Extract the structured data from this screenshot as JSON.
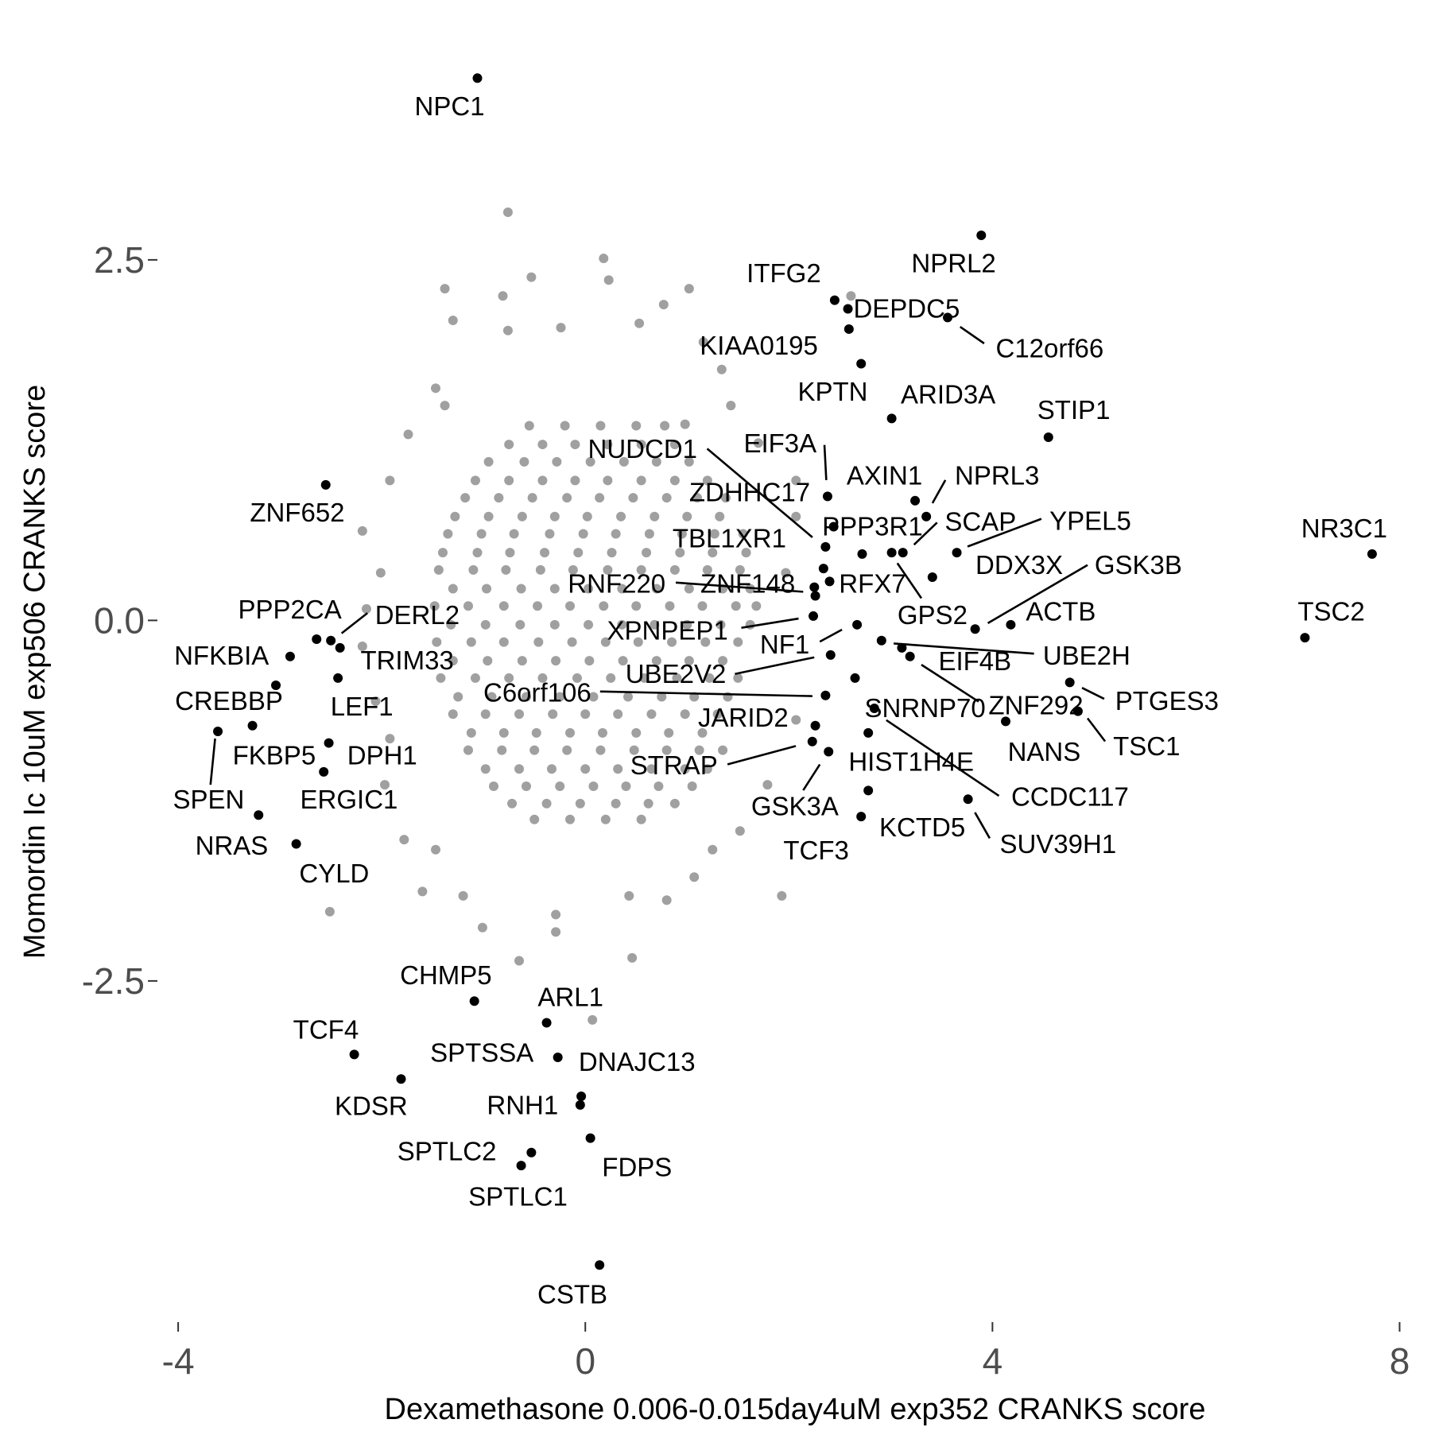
{
  "chart_data": {
    "type": "scatter",
    "x_label": "Dexamethasone 0.006-0.015day4uM exp352 CRANKS score",
    "y_label": "Momordin Ic 10uM exp506 CRANKS score",
    "xlim": [
      -4.15,
      8.2
    ],
    "ylim": [
      -4.8,
      4.05
    ],
    "xticks": [
      -4,
      0,
      4,
      8
    ],
    "yticks": [
      -2.5,
      {
        "value": 0,
        "label": "0.0"
      },
      2.5
    ],
    "background_points": {
      "color": "#a0a0a0",
      "x": [
        -0.55,
        -0.2,
        0.15,
        0.5,
        0.78,
        -0.95,
        -0.6,
        -0.28,
        0.05,
        0.38,
        0.7,
        1.02,
        -1.18,
        -0.85,
        -0.52,
        -0.18,
        0.14,
        0.47,
        0.8,
        1.1,
        1.38,
        -1.35,
        -1.02,
        -0.7,
        -0.35,
        -0.02,
        0.3,
        0.63,
        0.95,
        1.27,
        1.55,
        -1.44,
        -1.1,
        -0.78,
        -0.44,
        -0.12,
        0.22,
        0.55,
        0.88,
        1.2,
        1.52,
        -1.48,
        -1.15,
        -0.8,
        -0.47,
        -0.15,
        0.18,
        0.5,
        0.83,
        1.15,
        1.48,
        1.68,
        -1.46,
        -1.12,
        -0.8,
        -0.46,
        -0.13,
        0.2,
        0.52,
        0.85,
        1.18,
        1.5,
        -1.42,
        -1.08,
        -0.75,
        -0.42,
        -0.08,
        0.25,
        0.58,
        0.9,
        1.22,
        1.5,
        -1.3,
        -0.98,
        -0.65,
        -0.32,
        0.0,
        0.32,
        0.65,
        0.98,
        1.3,
        -1.15,
        -0.82,
        -0.5,
        -0.18,
        0.15,
        0.48,
        0.8,
        1.12,
        1.35,
        -0.9,
        -0.58,
        -0.25,
        0.08,
        0.4,
        0.72,
        1.05,
        -0.5,
        -0.15,
        0.2,
        0.55,
        -0.75,
        -0.42,
        -0.1,
        0.22,
        0.55,
        0.88,
        -1.08,
        -0.75,
        -0.42,
        -0.1,
        0.22,
        0.55,
        0.88,
        1.2,
        -1.28,
        -0.95,
        -0.62,
        -0.3,
        0.02,
        0.35,
        0.68,
        1.0,
        1.32,
        -1.4,
        -1.06,
        -0.74,
        -0.4,
        -0.07,
        0.26,
        0.6,
        0.93,
        1.25,
        1.58,
        -1.3,
        -0.97,
        -0.63,
        -0.3,
        0.03,
        0.36,
        0.7,
        1.02,
        1.35,
        1.62,
        -1.32,
        -0.98,
        -0.64,
        -0.3,
        0.03,
        0.36,
        0.68,
        1.0,
        1.33,
        1.62,
        -1.3,
        -0.96,
        -0.62,
        -0.29,
        0.04,
        0.37,
        0.7,
        1.02,
        1.35,
        -1.25,
        -0.92,
        -0.58,
        -0.25,
        0.08,
        0.42,
        0.75,
        1.07,
        1.4,
        -1.12,
        -0.8,
        -0.48,
        -0.15,
        0.17,
        0.5,
        0.82,
        1.15,
        -0.98,
        -0.65,
        -0.33,
        0.0,
        0.32,
        0.65,
        0.98,
        1.2,
        -0.72,
        -0.38,
        -0.05,
        0.3,
        0.62,
        0.88,
        -0.76,
        0.18,
        -0.53,
        0.23,
        -1.38,
        -0.81,
        1.02,
        0.77,
        -1.3,
        -0.76,
        -0.24,
        0.53,
        1.16,
        2.61,
        1.34,
        -1.47,
        -1.74,
        -1.92,
        -2.19,
        -2.01,
        -2.15,
        -2.19,
        -2.06,
        -1.92,
        -1.97,
        -1.78,
        -1.6,
        -2.51,
        -1.01,
        -0.65,
        0.07,
        0.46,
        0.8,
        1.93,
        1.52,
        1.79,
        2.07,
        2.07,
        1.7,
        2.07,
        1.97,
        -0.29,
        -1.38,
        1.43,
        0.98,
        1.25,
        -1.2,
        -1.47,
        -0.29,
        0.43,
        1.07
      ],
      "y": [
        1.35,
        1.35,
        1.35,
        1.35,
        1.35,
        1.1,
        1.1,
        1.1,
        1.1,
        1.1,
        1.1,
        1.1,
        0.85,
        0.85,
        0.85,
        0.85,
        0.85,
        0.85,
        0.85,
        0.85,
        0.85,
        0.6,
        0.6,
        0.6,
        0.6,
        0.6,
        0.6,
        0.6,
        0.6,
        0.6,
        0.6,
        0.35,
        0.35,
        0.35,
        0.35,
        0.35,
        0.35,
        0.35,
        0.35,
        0.35,
        0.35,
        0.1,
        0.1,
        0.1,
        0.1,
        0.1,
        0.1,
        0.1,
        0.1,
        0.1,
        0.1,
        0.1,
        -0.15,
        -0.15,
        -0.15,
        -0.15,
        -0.15,
        -0.15,
        -0.15,
        -0.15,
        -0.15,
        -0.15,
        -0.4,
        -0.4,
        -0.4,
        -0.4,
        -0.4,
        -0.4,
        -0.4,
        -0.4,
        -0.4,
        -0.4,
        -0.65,
        -0.65,
        -0.65,
        -0.65,
        -0.65,
        -0.65,
        -0.65,
        -0.65,
        -0.65,
        -0.9,
        -0.9,
        -0.9,
        -0.9,
        -0.9,
        -0.9,
        -0.9,
        -0.9,
        -0.9,
        -1.15,
        -1.15,
        -1.15,
        -1.15,
        -1.15,
        -1.15,
        -1.15,
        -1.38,
        -1.38,
        -1.38,
        -1.38,
        1.22,
        1.22,
        1.22,
        1.22,
        1.22,
        1.22,
        0.97,
        0.97,
        0.97,
        0.97,
        0.97,
        0.97,
        0.97,
        0.97,
        0.72,
        0.72,
        0.72,
        0.72,
        0.72,
        0.72,
        0.72,
        0.72,
        0.72,
        0.47,
        0.47,
        0.47,
        0.47,
        0.47,
        0.47,
        0.47,
        0.47,
        0.47,
        0.47,
        0.22,
        0.22,
        0.22,
        0.22,
        0.22,
        0.22,
        0.22,
        0.22,
        0.22,
        0.22,
        -0.03,
        -0.03,
        -0.03,
        -0.03,
        -0.03,
        -0.03,
        -0.03,
        -0.03,
        -0.03,
        -0.03,
        -0.28,
        -0.28,
        -0.28,
        -0.28,
        -0.28,
        -0.28,
        -0.28,
        -0.28,
        -0.28,
        -0.53,
        -0.53,
        -0.53,
        -0.53,
        -0.53,
        -0.53,
        -0.53,
        -0.53,
        -0.53,
        -0.78,
        -0.78,
        -0.78,
        -0.78,
        -0.78,
        -0.78,
        -0.78,
        -0.78,
        -1.03,
        -1.03,
        -1.03,
        -1.03,
        -1.03,
        -1.03,
        -1.03,
        -1.03,
        -1.27,
        -1.27,
        -1.27,
        -1.27,
        -1.27,
        -1.27,
        2.83,
        2.51,
        2.38,
        2.36,
        2.3,
        2.25,
        2.3,
        2.19,
        2.08,
        2.01,
        2.03,
        2.06,
        1.93,
        2.25,
        1.74,
        1.61,
        1.29,
        0.97,
        0.62,
        0.33,
        0.08,
        -0.18,
        -0.56,
        -0.82,
        -1.14,
        -1.52,
        -1.88,
        -2.02,
        -2.13,
        -2.36,
        -2.77,
        -2.34,
        -1.94,
        -1.91,
        -1.46,
        -1.14,
        -0.69,
        0.72,
        1.23,
        0.97,
        0.33,
        -2.16,
        1.49,
        1.49,
        1.36,
        -1.59,
        -1.91,
        -1.59,
        -2.04,
        -1.91,
        -1.78
      ]
    },
    "labeled_points": {
      "color": "#000000",
      "labels": [
        "NPC1",
        "ZNF652",
        "PPP2CA",
        "DERL2",
        "TRIM33",
        "NFKBIA",
        "LEF1",
        "CREBBP",
        "FKBP5",
        "SPEN",
        "DPH1",
        "ERGIC1",
        "NRAS",
        "CYLD",
        "CHMP5",
        "ARL1",
        "TCF4",
        "SPTSSA",
        "DNAJC13",
        "RNH1",
        "KDSR",
        "SPTLC2",
        "SPTLC1",
        "FDPS",
        "CSTB",
        "NPRL2",
        "ITFG2",
        "DEPDC5",
        "C12orf66",
        "KIAA0195",
        "KPTN",
        "ARID3A",
        "STIP1",
        "NR3C1",
        "TSC2",
        "EIF3A",
        "NUDCD1",
        "ZDHHC17",
        "AXIN1",
        "NPRL3",
        "PPP3R1",
        "SCAP",
        "YPEL5",
        "TBL1XR1",
        "DDX3X",
        "GSK3B",
        "RNF220",
        "ZNF148",
        "RFX7",
        "GPS2",
        "ACTB",
        "XPNPEP1",
        "NF1",
        "UBE2H",
        "EIF4B",
        "UBE2V2",
        "ZNF292",
        "C6orf106",
        "SNRNP70",
        "PTGES3",
        "TSC1",
        "NANS",
        "JARID2",
        "HIST1H4E",
        "STRAP",
        "GSK3A",
        "CCDC117",
        "TCF3",
        "KCTD5",
        "SUV39H1"
      ],
      "x": [
        -1.06,
        -2.55,
        -2.64,
        -2.5,
        -2.41,
        -2.9,
        -2.43,
        -3.04,
        -3.27,
        -3.61,
        -2.52,
        -2.57,
        -3.21,
        -2.84,
        -1.09,
        -0.38,
        -2.27,
        -0.27,
        -0.04,
        -0.05,
        -1.81,
        -0.53,
        -0.63,
        0.05,
        0.14,
        3.89,
        2.45,
        2.58,
        3.56,
        2.59,
        2.71,
        3.01,
        4.55,
        7.73,
        7.07,
        2.38,
        2.36,
        2.44,
        3.24,
        3.35,
        2.72,
        3.12,
        3.65,
        2.34,
        3.41,
        3.83,
        2.25,
        2.26,
        2.4,
        3.01,
        4.18,
        2.24,
        2.67,
        2.91,
        3.11,
        2.41,
        3.19,
        2.36,
        2.65,
        4.76,
        4.84,
        4.13,
        2.26,
        2.78,
        2.23,
        2.39,
        2.84,
        2.71,
        2.78,
        3.76
      ],
      "y": [
        3.76,
        0.94,
        -0.13,
        -0.14,
        -0.19,
        -0.25,
        -0.4,
        -0.45,
        -0.73,
        -0.77,
        -0.85,
        -1.05,
        -1.35,
        -1.55,
        -2.64,
        -2.79,
        -3.01,
        -3.03,
        -3.3,
        -3.36,
        -3.18,
        -3.69,
        -3.78,
        -3.59,
        -4.47,
        2.67,
        2.22,
        2.16,
        2.1,
        2.02,
        1.78,
        1.4,
        1.27,
        0.46,
        -0.12,
        0.86,
        0.51,
        0.65,
        0.83,
        0.72,
        0.46,
        0.47,
        0.47,
        0.36,
        0.3,
        -0.06,
        0.23,
        0.17,
        0.27,
        0.47,
        -0.03,
        0.03,
        -0.03,
        -0.14,
        -0.19,
        -0.24,
        -0.25,
        -0.52,
        -0.4,
        -0.43,
        -0.63,
        -0.7,
        -0.73,
        -0.78,
        -0.84,
        -0.91,
        -0.61,
        -1.36,
        -1.18,
        -1.24
      ]
    }
  }
}
